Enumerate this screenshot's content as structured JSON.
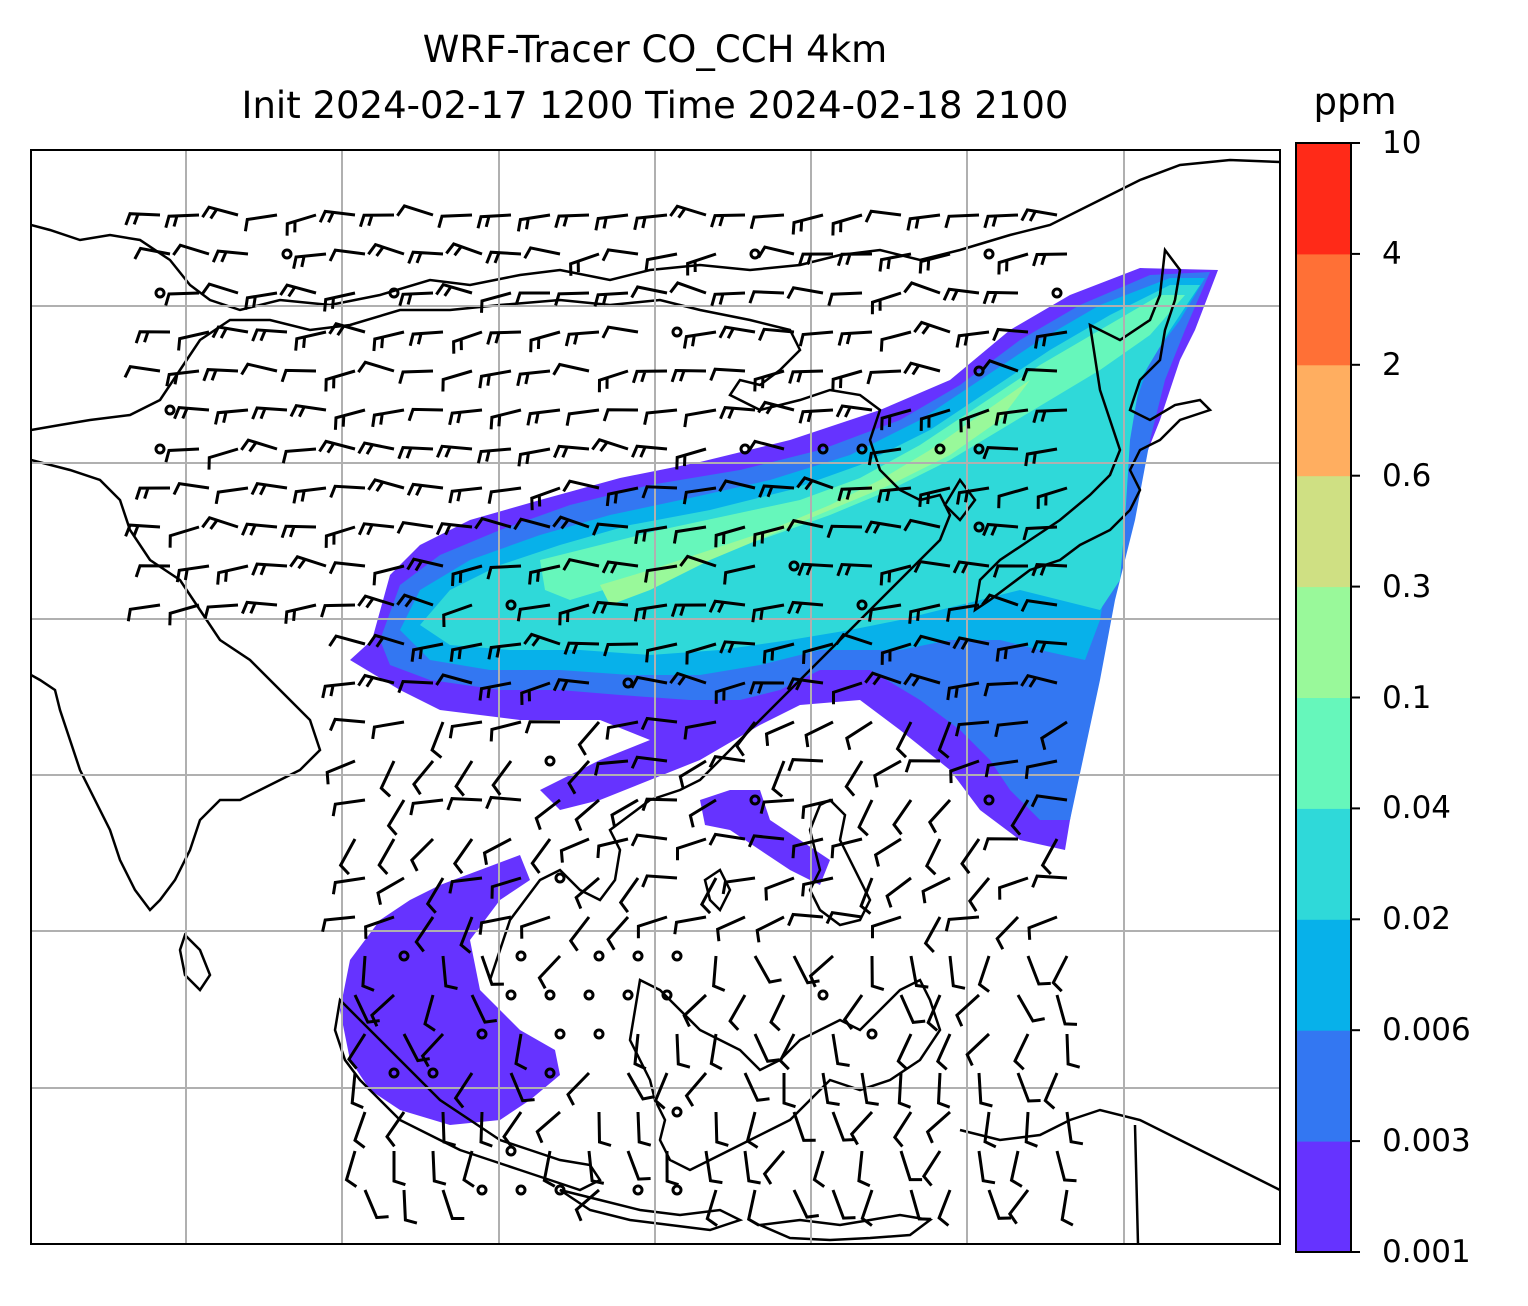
{
  "title": {
    "line1": "WRF-Tracer CO_CCH 4km",
    "line2": "Init 2024-02-17 1200 Time 2024-02-18 2100"
  },
  "colorbar": {
    "unit_label": "ppm",
    "tick_labels": [
      "0.001",
      "0.003",
      "0.006",
      "0.02",
      "0.04",
      "0.1",
      "0.3",
      "0.6",
      "2",
      "4",
      "10"
    ],
    "colors": [
      "#6633ff",
      "#3377f2",
      "#07b1ea",
      "#2fd9d9",
      "#66f7bb",
      "#99f99a",
      "#cfe083",
      "#ffae60",
      "#ff7036",
      "#ff2a18"
    ]
  },
  "map": {
    "grid": true,
    "coastlines": true,
    "field": "CO tracer concentration",
    "overlay": "wind barbs"
  }
}
